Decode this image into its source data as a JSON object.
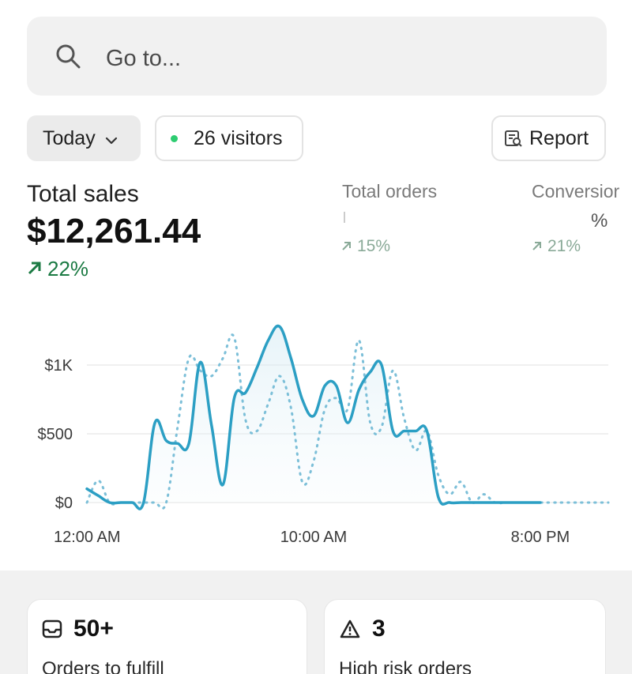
{
  "search": {
    "placeholder": "Go to..."
  },
  "filters": {
    "date_range": "Today",
    "visitors": "26 visitors",
    "report_label": "Report"
  },
  "metrics": {
    "total_sales": {
      "title": "Total sales",
      "value": "$12,261.44",
      "trend": "22%"
    },
    "total_orders": {
      "title": "Total orders",
      "value": "",
      "trend": "15%"
    },
    "conversion": {
      "title": "Conversior",
      "value": "%",
      "trend": "21%"
    }
  },
  "colors": {
    "accent_line": "#2c9fc4",
    "trend_positive": "#1b7a43",
    "live_dot": "#2ecc71"
  },
  "chart_data": {
    "type": "line",
    "y_tick_labels": [
      "$1K",
      "$500",
      "$0"
    ],
    "x_tick_labels": [
      "12:00 AM",
      "10:00 AM",
      "8:00 PM"
    ],
    "ylim": [
      0,
      1250
    ],
    "x": [
      0,
      0.5,
      1,
      1.5,
      2,
      2.5,
      3,
      3.5,
      4,
      4.5,
      5,
      5.5,
      6,
      6.5,
      7,
      7.5,
      8,
      8.5,
      9,
      9.5,
      10,
      10.5,
      11,
      11.5,
      12,
      12.5,
      13,
      13.5,
      14,
      14.5,
      15,
      15.5,
      16,
      16.5,
      17,
      17.5,
      18,
      18.5,
      19,
      19.5,
      20,
      20.5,
      21,
      21.5,
      22,
      22.5,
      23
    ],
    "series": [
      {
        "style": "solid",
        "values": [
          100,
          50,
          0,
          0,
          0,
          0,
          580,
          450,
          430,
          430,
          1020,
          560,
          130,
          760,
          800,
          980,
          1180,
          1280,
          1050,
          750,
          630,
          850,
          850,
          580,
          820,
          950,
          1000,
          520,
          520,
          520,
          520,
          40,
          0,
          0,
          0,
          0,
          0,
          0,
          0,
          0,
          0,
          0,
          0,
          0,
          0,
          0,
          0
        ]
      },
      {
        "style": "dotted",
        "values": [
          0,
          160,
          0,
          0,
          0,
          0,
          0,
          0,
          550,
          1050,
          960,
          920,
          1050,
          1200,
          600,
          520,
          720,
          920,
          690,
          150,
          300,
          680,
          760,
          680,
          1180,
          580,
          550,
          960,
          610,
          380,
          520,
          200,
          60,
          150,
          0,
          60,
          0,
          0,
          0,
          0,
          0,
          0,
          0,
          0,
          0,
          0,
          0
        ]
      }
    ]
  },
  "cards": [
    {
      "value": "50+",
      "label": "Orders to fulfill",
      "icon": "inbox-icon"
    },
    {
      "value": "3",
      "label": "High risk orders",
      "icon": "warning-icon"
    }
  ]
}
